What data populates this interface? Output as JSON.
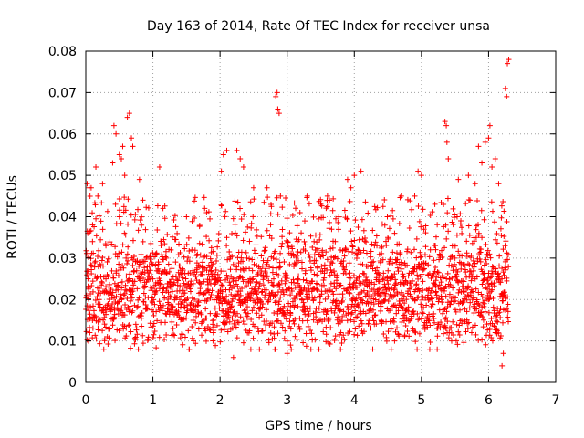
{
  "chart_data": {
    "type": "scatter",
    "title": "Day 163 of 2014, Rate Of TEC Index for receiver unsa",
    "xlabel": "GPS time / hours",
    "ylabel": "ROTI / TECUs",
    "xlim": [
      0,
      7
    ],
    "ylim": [
      0,
      0.08
    ],
    "x_ticks": [
      0,
      1,
      2,
      3,
      4,
      5,
      6,
      7
    ],
    "x_tick_labels": [
      "0",
      "1",
      "2",
      "3",
      "4",
      "5",
      "6",
      "7"
    ],
    "y_ticks": [
      0,
      0.01,
      0.02,
      0.03,
      0.04,
      0.05,
      0.06,
      0.07,
      0.08
    ],
    "y_tick_labels": [
      "0",
      "0.01",
      "0.02",
      "0.03",
      "0.04",
      "0.05",
      "0.06",
      "0.07",
      "0.08"
    ],
    "grid": true,
    "marker": "+",
    "series_color": "#ff0000",
    "series": [
      {
        "name": "ROTI",
        "points": [
          [
            0.02,
            0.048
          ],
          [
            0.05,
            0.047
          ],
          [
            0.08,
            0.047
          ],
          [
            0.03,
            0.036
          ],
          [
            0.06,
            0.012
          ],
          [
            0.04,
            0.01
          ],
          [
            0.1,
            0.034
          ],
          [
            0.15,
            0.052
          ],
          [
            0.18,
            0.045
          ],
          [
            0.25,
            0.048
          ],
          [
            0.3,
            0.033
          ],
          [
            0.4,
            0.053
          ],
          [
            0.42,
            0.062
          ],
          [
            0.45,
            0.06
          ],
          [
            0.5,
            0.055
          ],
          [
            0.53,
            0.054
          ],
          [
            0.55,
            0.057
          ],
          [
            0.58,
            0.05
          ],
          [
            0.62,
            0.064
          ],
          [
            0.65,
            0.065
          ],
          [
            0.68,
            0.059
          ],
          [
            0.7,
            0.057
          ],
          [
            0.8,
            0.049
          ],
          [
            0.85,
            0.044
          ],
          [
            1.1,
            0.052
          ],
          [
            1.15,
            0.042
          ],
          [
            1.3,
            0.013
          ],
          [
            1.5,
            0.04
          ],
          [
            1.8,
            0.041
          ],
          [
            2.02,
            0.051
          ],
          [
            2.05,
            0.055
          ],
          [
            2.1,
            0.056
          ],
          [
            2.2,
            0.006
          ],
          [
            2.25,
            0.056
          ],
          [
            2.3,
            0.054
          ],
          [
            2.35,
            0.052
          ],
          [
            2.5,
            0.047
          ],
          [
            2.7,
            0.047
          ],
          [
            2.83,
            0.069
          ],
          [
            2.85,
            0.07
          ],
          [
            2.86,
            0.066
          ],
          [
            2.88,
            0.065
          ],
          [
            2.9,
            0.045
          ],
          [
            3.0,
            0.007
          ],
          [
            3.05,
            0.009
          ],
          [
            3.3,
            0.045
          ],
          [
            3.5,
            0.043
          ],
          [
            3.6,
            0.045
          ],
          [
            3.9,
            0.049
          ],
          [
            3.95,
            0.047
          ],
          [
            4.0,
            0.05
          ],
          [
            4.1,
            0.051
          ],
          [
            4.3,
            0.033
          ],
          [
            4.5,
            0.035
          ],
          [
            4.6,
            0.036
          ],
          [
            4.7,
            0.045
          ],
          [
            4.9,
            0.045
          ],
          [
            4.95,
            0.051
          ],
          [
            5.0,
            0.05
          ],
          [
            5.2,
            0.043
          ],
          [
            5.35,
            0.063
          ],
          [
            5.37,
            0.062
          ],
          [
            5.38,
            0.058
          ],
          [
            5.4,
            0.054
          ],
          [
            5.45,
            0.01
          ],
          [
            5.55,
            0.049
          ],
          [
            5.7,
            0.05
          ],
          [
            5.8,
            0.048
          ],
          [
            5.85,
            0.057
          ],
          [
            5.9,
            0.053
          ],
          [
            5.95,
            0.058
          ],
          [
            6.0,
            0.059
          ],
          [
            6.02,
            0.062
          ],
          [
            6.05,
            0.052
          ],
          [
            6.1,
            0.054
          ],
          [
            6.15,
            0.048
          ],
          [
            6.2,
            0.004
          ],
          [
            6.22,
            0.007
          ],
          [
            6.25,
            0.071
          ],
          [
            6.27,
            0.069
          ],
          [
            6.28,
            0.077
          ],
          [
            6.3,
            0.078
          ],
          [
            0.5,
            0.04
          ],
          [
            0.3,
            0.025
          ],
          [
            0.2,
            0.02
          ],
          [
            0.1,
            0.015
          ],
          [
            0.6,
            0.03
          ],
          [
            0.7,
            0.022
          ],
          [
            0.9,
            0.018
          ],
          [
            1.0,
            0.025
          ],
          [
            1.2,
            0.03
          ],
          [
            1.4,
            0.02
          ],
          [
            1.6,
            0.015
          ],
          [
            1.7,
            0.028
          ],
          [
            1.9,
            0.012
          ],
          [
            2.1,
            0.035
          ],
          [
            2.3,
            0.022
          ],
          [
            2.4,
            0.03
          ],
          [
            2.6,
            0.018
          ],
          [
            2.8,
            0.025
          ],
          [
            3.1,
            0.028
          ],
          [
            3.3,
            0.02
          ],
          [
            3.4,
            0.034
          ],
          [
            3.7,
            0.024
          ],
          [
            3.8,
            0.012
          ],
          [
            4.1,
            0.02
          ],
          [
            4.2,
            0.028
          ],
          [
            4.4,
            0.015
          ],
          [
            4.6,
            0.01
          ],
          [
            4.8,
            0.022
          ],
          [
            5.0,
            0.018
          ],
          [
            5.1,
            0.026
          ],
          [
            5.3,
            0.02
          ],
          [
            5.5,
            0.03
          ],
          [
            5.6,
            0.015
          ],
          [
            5.8,
            0.025
          ],
          [
            5.9,
            0.035
          ],
          [
            6.0,
            0.02
          ],
          [
            6.1,
            0.012
          ],
          [
            6.2,
            0.025
          ]
        ]
      }
    ],
    "band": {
      "description": "dense cloud of points between 0.010 and 0.045 across 0–6.3 h",
      "x_range": [
        0,
        6.3
      ],
      "y_low": 0.01,
      "y_high": 0.045,
      "y_center": 0.022
    }
  }
}
